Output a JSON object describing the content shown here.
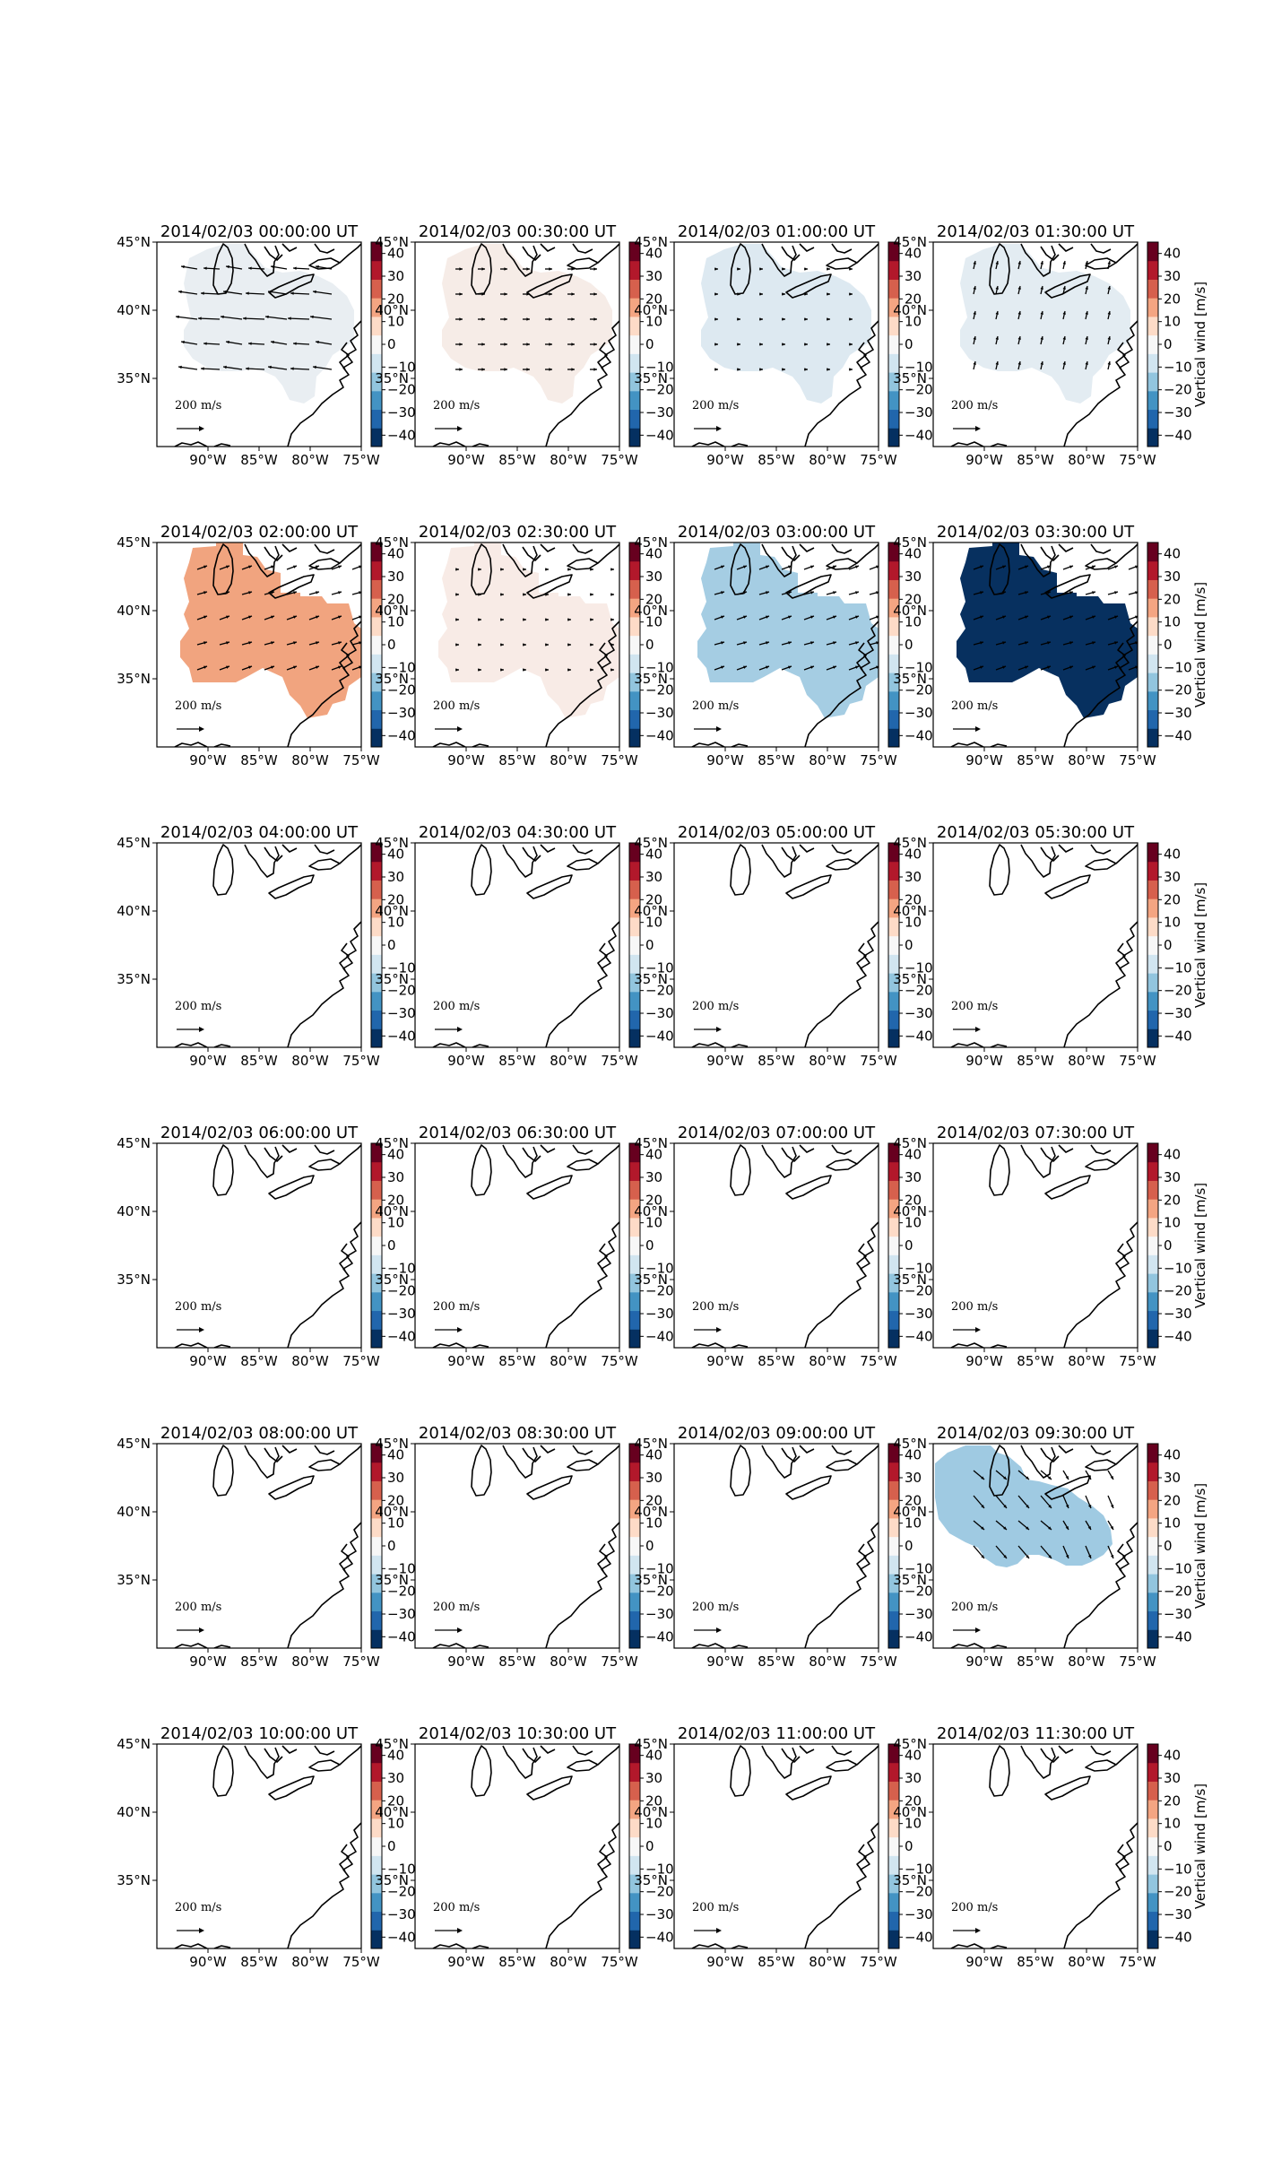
{
  "figure": {
    "shared": {
      "lat_ticks": [
        "45°N",
        "40°N",
        "35°N"
      ],
      "lon_ticks": [
        "90°W",
        "85°W",
        "80°W",
        "75°W"
      ],
      "colorbar_ticks": [
        "40",
        "30",
        "20",
        "10",
        "0",
        "−10",
        "−20",
        "−30",
        "−40"
      ],
      "colorbar_label": "Vertical wind [m/s]",
      "scale_label": "200 m/s",
      "colormap": [
        "#053061",
        "#2166ac",
        "#4393c3",
        "#92c5de",
        "#d1e5f0",
        "#f7f7f7",
        "#fddbc7",
        "#f4a582",
        "#d6604d",
        "#b2182b",
        "#67001f"
      ]
    },
    "panels": [
      {
        "title": "2014/02/03 00:00:00 UT",
        "fill": "#e9eef2",
        "region": "wide",
        "vectors": "west"
      },
      {
        "title": "2014/02/03 00:30:00 UT",
        "fill": "#f6ece7",
        "region": "wide",
        "vectors": "small"
      },
      {
        "title": "2014/02/03 01:00:00 UT",
        "fill": "#dde9f1",
        "region": "wide",
        "vectors": "tiny"
      },
      {
        "title": "2014/02/03 01:30:00 UT",
        "fill": "#e3ecf2",
        "region": "wide",
        "vectors": "north"
      },
      {
        "title": "2014/02/03 02:00:00 UT",
        "fill": "#f1a47f",
        "region": "full",
        "vectors": "ne"
      },
      {
        "title": "2014/02/03 02:30:00 UT",
        "fill": "#f8ebe6",
        "region": "full",
        "vectors": "tiny"
      },
      {
        "title": "2014/02/03 03:00:00 UT",
        "fill": "#a5cde3",
        "region": "full",
        "vectors": "ne"
      },
      {
        "title": "2014/02/03 03:30:00 UT",
        "fill": "#07305f",
        "region": "full",
        "vectors": "ne"
      },
      {
        "title": "2014/02/03 04:00:00 UT"
      },
      {
        "title": "2014/02/03 04:30:00 UT"
      },
      {
        "title": "2014/02/03 05:00:00 UT"
      },
      {
        "title": "2014/02/03 05:30:00 UT"
      },
      {
        "title": "2014/02/03 06:00:00 UT"
      },
      {
        "title": "2014/02/03 06:30:00 UT"
      },
      {
        "title": "2014/02/03 07:00:00 UT"
      },
      {
        "title": "2014/02/03 07:30:00 UT"
      },
      {
        "title": "2014/02/03 08:00:00 UT"
      },
      {
        "title": "2014/02/03 08:30:00 UT"
      },
      {
        "title": "2014/02/03 09:00:00 UT"
      },
      {
        "title": "2014/02/03 09:30:00 UT",
        "fill": "#9fcae2",
        "region": "north",
        "vectors": "se"
      },
      {
        "title": "2014/02/03 10:00:00 UT"
      },
      {
        "title": "2014/02/03 10:30:00 UT"
      },
      {
        "title": "2014/02/03 11:00:00 UT"
      },
      {
        "title": "2014/02/03 11:30:00 UT"
      }
    ]
  },
  "chart_data": {
    "type": "heatmap",
    "layout": "6x4 grid of map panels",
    "xticks": [
      "90°W",
      "85°W",
      "80°W",
      "75°W"
    ],
    "yticks": [
      "35°N",
      "40°N",
      "45°N"
    ],
    "colorbar": {
      "label": "Vertical wind [m/s]",
      "ticks": [
        40,
        30,
        20,
        10,
        0,
        -10,
        -20,
        -30,
        -40
      ],
      "cmap": "RdBu_r"
    },
    "quiver_key": "200 m/s",
    "panels": [
      {
        "title": "2014/02/03 00:00:00 UT",
        "vertical_wind": -2
      },
      {
        "title": "2014/02/03 00:30:00 UT",
        "vertical_wind": 2
      },
      {
        "title": "2014/02/03 01:00:00 UT",
        "vertical_wind": -5
      },
      {
        "title": "2014/02/03 01:30:00 UT",
        "vertical_wind": -4
      },
      {
        "title": "2014/02/03 02:00:00 UT",
        "vertical_wind": 22
      },
      {
        "title": "2014/02/03 02:30:00 UT",
        "vertical_wind": 2
      },
      {
        "title": "2014/02/03 03:00:00 UT",
        "vertical_wind": -15
      },
      {
        "title": "2014/02/03 03:30:00 UT",
        "vertical_wind": -45
      },
      {
        "title": "2014/02/03 04:00:00 UT",
        "vertical_wind": null
      },
      {
        "title": "2014/02/03 04:30:00 UT",
        "vertical_wind": null
      },
      {
        "title": "2014/02/03 05:00:00 UT",
        "vertical_wind": null
      },
      {
        "title": "2014/02/03 05:30:00 UT",
        "vertical_wind": null
      },
      {
        "title": "2014/02/03 06:00:00 UT",
        "vertical_wind": null
      },
      {
        "title": "2014/02/03 06:30:00 UT",
        "vertical_wind": null
      },
      {
        "title": "2014/02/03 07:00:00 UT",
        "vertical_wind": null
      },
      {
        "title": "2014/02/03 07:30:00 UT",
        "vertical_wind": null
      },
      {
        "title": "2014/02/03 08:00:00 UT",
        "vertical_wind": null
      },
      {
        "title": "2014/02/03 08:30:00 UT",
        "vertical_wind": null
      },
      {
        "title": "2014/02/03 09:00:00 UT",
        "vertical_wind": null
      },
      {
        "title": "2014/02/03 09:30:00 UT",
        "vertical_wind": -17
      },
      {
        "title": "2014/02/03 10:00:00 UT",
        "vertical_wind": null
      },
      {
        "title": "2014/02/03 10:30:00 UT",
        "vertical_wind": null
      },
      {
        "title": "2014/02/03 11:00:00 UT",
        "vertical_wind": null
      },
      {
        "title": "2014/02/03 11:30:00 UT",
        "vertical_wind": null
      }
    ]
  }
}
